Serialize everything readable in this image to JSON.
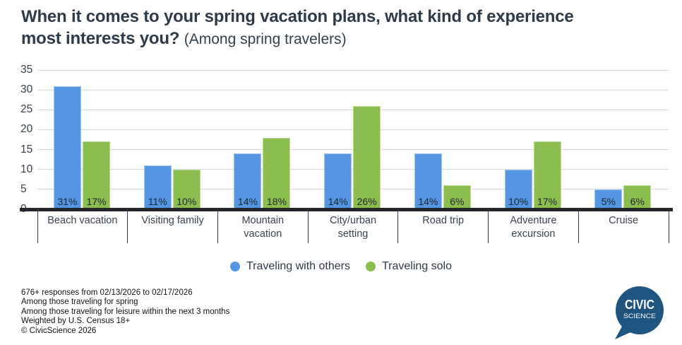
{
  "title": {
    "line1": "When it comes to your spring vacation plans, what kind of experience",
    "line2_bold": "most interests you?",
    "subtitle": "(Among spring travelers)"
  },
  "chart_data": {
    "type": "bar",
    "categories": [
      "Beach vacation",
      "Visiting family",
      "Mountain vacation",
      "City/urban setting",
      "Road trip",
      "Adventure excursion",
      "Cruise"
    ],
    "series": [
      {
        "name": "Traveling with others",
        "color": "#5596e2",
        "values": [
          31,
          11,
          14,
          14,
          14,
          10,
          5
        ],
        "labels": [
          "31%",
          "11%",
          "14%",
          "14%",
          "14%",
          "10%",
          "5%"
        ]
      },
      {
        "name": "Traveling solo",
        "color": "#8cbe4f",
        "values": [
          17,
          10,
          18,
          26,
          6,
          17,
          6
        ],
        "labels": [
          "17%",
          "10%",
          "18%",
          "26%",
          "6%",
          "17%",
          "6%"
        ]
      }
    ],
    "ylim": [
      0,
      35
    ],
    "yticks": [
      0,
      5,
      10,
      15,
      20,
      25,
      30,
      35
    ],
    "grid": true,
    "legend_position": "bottom",
    "xlabel": "",
    "ylabel": ""
  },
  "footnotes": [
    "676+ responses from 02/13/2026 to 02/17/2026",
    "Among those traveling for spring",
    "Among those traveling for leisure within the next 3 months",
    "Weighted by U.S. Census 18+",
    "© CivicScience 2026"
  ],
  "logo": {
    "line1": "CIVIC",
    "line2": "SCIENCE",
    "bubble_color": "#1f547e"
  }
}
